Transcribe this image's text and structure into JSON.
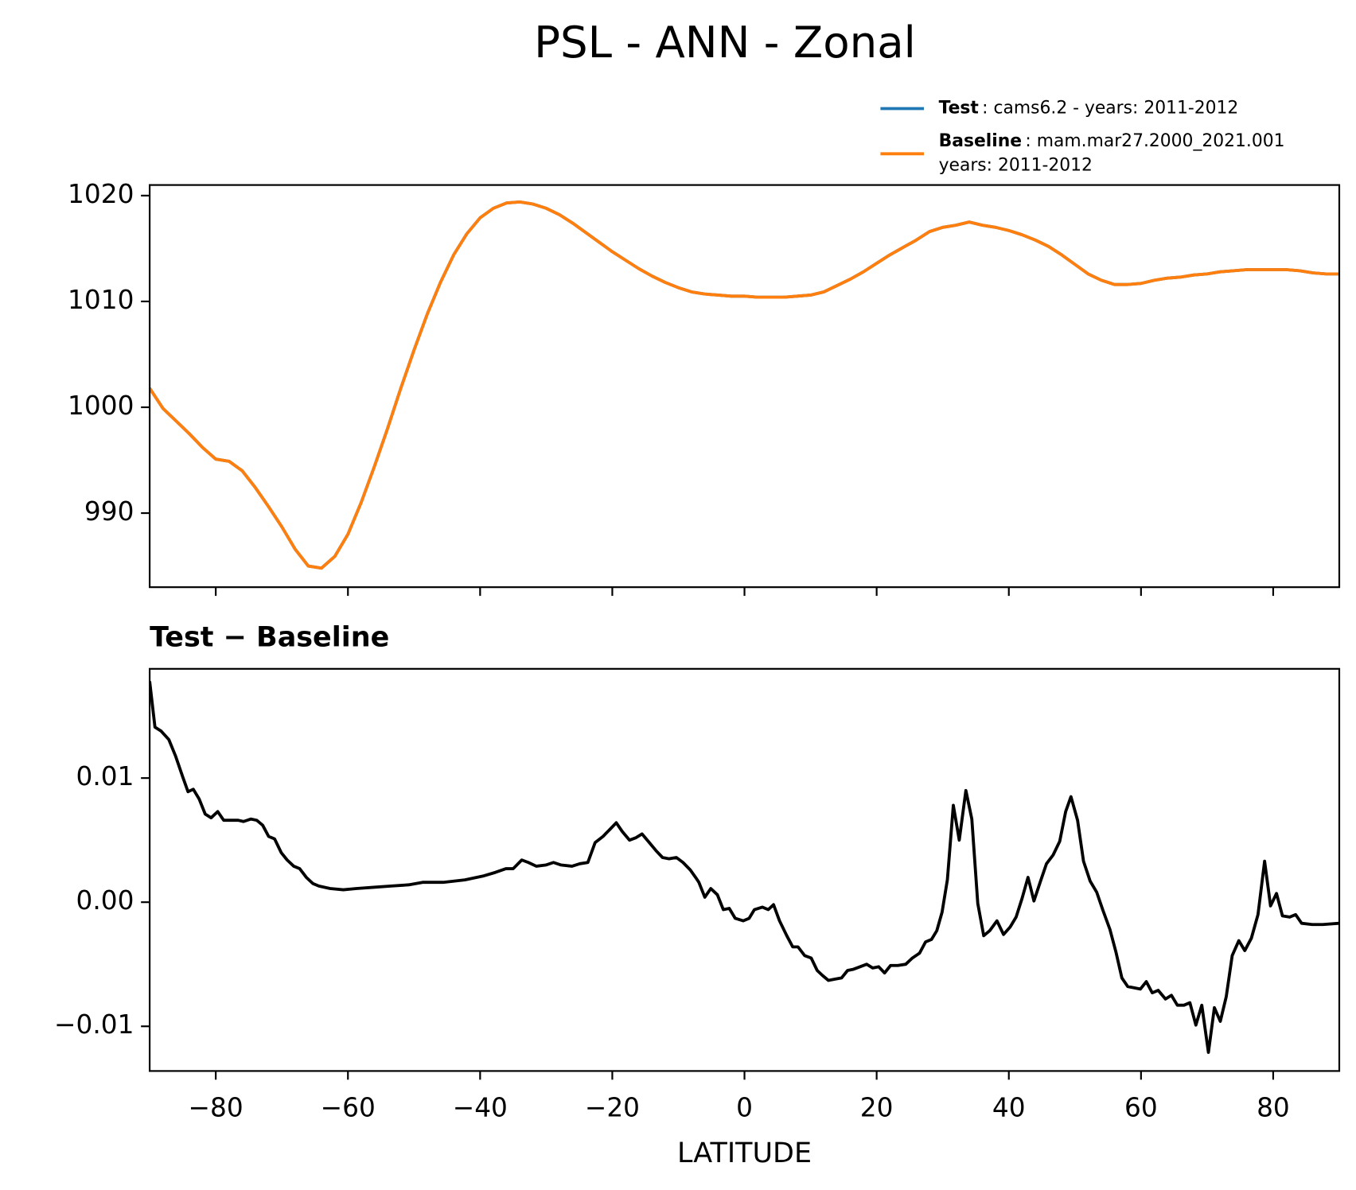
{
  "title": "PSL - ANN - Zonal",
  "chart_data": [
    {
      "type": "line",
      "x": [
        -90,
        -88,
        -86,
        -84,
        -82,
        -80,
        -78,
        -76,
        -74,
        -72,
        -70,
        -68,
        -66,
        -64,
        -62,
        -60,
        -58,
        -56,
        -54,
        -52,
        -50,
        -48,
        -46,
        -44,
        -42,
        -40,
        -38,
        -36,
        -34,
        -32,
        -30,
        -28,
        -26,
        -24,
        -22,
        -20,
        -18,
        -16,
        -14,
        -12,
        -10,
        -8,
        -6,
        -4,
        -2,
        0,
        2,
        4,
        6,
        8,
        10,
        12,
        14,
        16,
        18,
        20,
        22,
        24,
        26,
        28,
        30,
        32,
        34,
        36,
        38,
        40,
        42,
        44,
        46,
        48,
        50,
        52,
        54,
        56,
        58,
        60,
        62,
        64,
        66,
        68,
        70,
        72,
        74,
        76,
        78,
        80,
        82,
        84,
        86,
        88,
        90
      ],
      "series": [
        {
          "name": "Test",
          "detail": [
            ": cams6.2 - years: 2011-2012"
          ],
          "color": "#1f77b4",
          "values": [
            1001.8,
            999.9,
            998.7,
            997.5,
            996.2,
            995.1,
            994.9,
            994.0,
            992.4,
            990.6,
            988.7,
            986.6,
            985.0,
            984.8,
            985.9,
            988.0,
            991.0,
            994.4,
            998.0,
            1001.8,
            1005.4,
            1008.8,
            1011.8,
            1014.4,
            1016.4,
            1017.9,
            1018.8,
            1019.3,
            1019.4,
            1019.2,
            1018.8,
            1018.2,
            1017.4,
            1016.5,
            1015.6,
            1014.7,
            1013.9,
            1013.1,
            1012.4,
            1011.8,
            1011.3,
            1010.9,
            1010.7,
            1010.6,
            1010.5,
            1010.5,
            1010.4,
            1010.4,
            1010.4,
            1010.5,
            1010.6,
            1010.9,
            1011.5,
            1012.1,
            1012.8,
            1013.6,
            1014.4,
            1015.1,
            1015.8,
            1016.6,
            1017.0,
            1017.2,
            1017.5,
            1017.2,
            1017.0,
            1016.7,
            1016.3,
            1015.8,
            1015.2,
            1014.4,
            1013.5,
            1012.6,
            1012.0,
            1011.6,
            1011.6,
            1011.7,
            1012.0,
            1012.2,
            1012.3,
            1012.5,
            1012.6,
            1012.8,
            1012.9,
            1013.0,
            1013.0,
            1013.0,
            1013.0,
            1012.9,
            1012.7,
            1012.6,
            1012.6
          ]
        },
        {
          "name": "Baseline",
          "detail": [
            ": mam.mar27.2000_2021.001",
            "years: 2011-2012"
          ],
          "color": "#ff7f0e",
          "values": [
            1001.8,
            999.9,
            998.7,
            997.5,
            996.2,
            995.1,
            994.9,
            994.0,
            992.4,
            990.6,
            988.7,
            986.6,
            985.0,
            984.8,
            985.9,
            988.0,
            991.0,
            994.4,
            998.0,
            1001.8,
            1005.4,
            1008.8,
            1011.8,
            1014.4,
            1016.4,
            1017.9,
            1018.8,
            1019.3,
            1019.4,
            1019.2,
            1018.8,
            1018.2,
            1017.4,
            1016.5,
            1015.6,
            1014.7,
            1013.9,
            1013.1,
            1012.4,
            1011.8,
            1011.3,
            1010.9,
            1010.7,
            1010.6,
            1010.5,
            1010.5,
            1010.4,
            1010.4,
            1010.4,
            1010.5,
            1010.6,
            1010.9,
            1011.5,
            1012.1,
            1012.8,
            1013.6,
            1014.4,
            1015.1,
            1015.8,
            1016.6,
            1017.0,
            1017.2,
            1017.5,
            1017.2,
            1017.0,
            1016.7,
            1016.3,
            1015.8,
            1015.2,
            1014.4,
            1013.5,
            1012.6,
            1012.0,
            1011.6,
            1011.6,
            1011.7,
            1012.0,
            1012.2,
            1012.3,
            1012.5,
            1012.6,
            1012.8,
            1012.9,
            1013.0,
            1013.0,
            1013.0,
            1013.0,
            1012.9,
            1012.7,
            1012.6,
            1012.6
          ]
        }
      ],
      "xlim": [
        -90,
        90
      ],
      "xticks": [
        -80,
        -60,
        -40,
        -20,
        0,
        20,
        40,
        60,
        80
      ],
      "xtick_labels": false,
      "ylim": [
        983.0,
        1021.0
      ],
      "yticks": [
        990,
        1000,
        1010,
        1020
      ],
      "grid": false
    },
    {
      "type": "line",
      "title": "Test − Baseline",
      "xlabel": "LATITUDE",
      "color": "#000000",
      "x": [
        -90,
        -89.2,
        -88.3,
        -87.1,
        -86.1,
        -85.0,
        -84.2,
        -83.4,
        -82.5,
        -81.6,
        -80.7,
        -79.7,
        -78.8,
        -77.6,
        -76.6,
        -75.8,
        -74.7,
        -73.8,
        -72.9,
        -72.0,
        -71.1,
        -70.1,
        -69.2,
        -68.2,
        -67.3,
        -66.3,
        -65.3,
        -64.4,
        -62.7,
        -60.7,
        -58.7,
        -56.1,
        -53.5,
        -50.8,
        -48.7,
        -45.6,
        -42.3,
        -39.6,
        -37.7,
        -36.1,
        -35.0,
        -33.7,
        -32.7,
        -31.5,
        -30.0,
        -28.9,
        -27.8,
        -26.1,
        -24.9,
        -23.7,
        -22.6,
        -21.4,
        -20.3,
        -19.4,
        -18.5,
        -17.4,
        -16.4,
        -15.5,
        -14.4,
        -13.3,
        -12.4,
        -11.4,
        -10.3,
        -9.3,
        -8.2,
        -7.4,
        -6.9,
        -6.0,
        -5.1,
        -4.1,
        -3.2,
        -2.3,
        -1.4,
        -0.2,
        0.7,
        1.5,
        2.7,
        3.6,
        4.4,
        5.3,
        6.4,
        7.3,
        8.1,
        9.1,
        10.1,
        11.0,
        11.8,
        12.7,
        13.7,
        14.7,
        15.6,
        16.5,
        17.5,
        18.5,
        19.4,
        20.3,
        21.2,
        22.1,
        23.2,
        24.4,
        25.4,
        26.5,
        27.4,
        28.3,
        29.1,
        29.9,
        30.7,
        31.6,
        32.5,
        33.5,
        34.4,
        35.3,
        36.2,
        37.1,
        38.2,
        39.2,
        40.2,
        41.1,
        42.0,
        42.9,
        43.8,
        44.8,
        45.7,
        46.7,
        47.7,
        48.6,
        49.4,
        50.4,
        51.3,
        52.3,
        53.3,
        54.2,
        55.3,
        56.2,
        57.1,
        58.0,
        59.0,
        59.9,
        60.8,
        61.7,
        62.6,
        63.7,
        64.6,
        65.5,
        66.5,
        67.4,
        68.3,
        69.2,
        70.2,
        71.1,
        72.0,
        72.9,
        73.8,
        74.8,
        75.7,
        76.7,
        77.7,
        78.7,
        79.6,
        80.5,
        81.4,
        82.5,
        83.4,
        84.3,
        85.9,
        87.5,
        90.0
      ],
      "values": [
        0.0178,
        0.0141,
        0.0138,
        0.0131,
        0.0118,
        0.0101,
        0.0089,
        0.0091,
        0.0083,
        0.0071,
        0.0068,
        0.0073,
        0.0066,
        0.0066,
        0.0066,
        0.0065,
        0.0067,
        0.0066,
        0.0062,
        0.0053,
        0.0051,
        0.004,
        0.0034,
        0.0029,
        0.0027,
        0.002,
        0.0015,
        0.0013,
        0.0011,
        0.001,
        0.0011,
        0.0012,
        0.0013,
        0.0014,
        0.0016,
        0.0016,
        0.0018,
        0.0021,
        0.0024,
        0.0027,
        0.0027,
        0.0034,
        0.0032,
        0.0029,
        0.003,
        0.0032,
        0.003,
        0.0029,
        0.0031,
        0.0032,
        0.0048,
        0.0053,
        0.0059,
        0.0064,
        0.0057,
        0.005,
        0.0052,
        0.0055,
        0.0048,
        0.0041,
        0.0036,
        0.0035,
        0.0036,
        0.0032,
        0.0026,
        0.002,
        0.0016,
        0.0004,
        0.0011,
        0.0006,
        -0.0006,
        -0.0005,
        -0.0013,
        -0.0015,
        -0.0013,
        -0.0006,
        -0.0004,
        -0.0006,
        -0.0002,
        -0.0015,
        -0.0027,
        -0.0036,
        -0.0036,
        -0.0043,
        -0.0045,
        -0.0055,
        -0.0059,
        -0.0063,
        -0.0062,
        -0.0061,
        -0.0055,
        -0.0054,
        -0.0052,
        -0.005,
        -0.0053,
        -0.0052,
        -0.0057,
        -0.0051,
        -0.0051,
        -0.005,
        -0.0045,
        -0.0041,
        -0.0032,
        -0.003,
        -0.0023,
        -0.0008,
        0.0018,
        0.0078,
        0.005,
        0.009,
        0.0067,
        -0.0001,
        -0.0027,
        -0.0023,
        -0.0015,
        -0.0026,
        -0.002,
        -0.0012,
        0.0003,
        0.002,
        0.0001,
        0.0017,
        0.0031,
        0.0038,
        0.0049,
        0.0073,
        0.0085,
        0.0066,
        0.0033,
        0.0017,
        0.0008,
        -0.0006,
        -0.0022,
        -0.004,
        -0.0061,
        -0.0068,
        -0.0069,
        -0.007,
        -0.0064,
        -0.0073,
        -0.0071,
        -0.0078,
        -0.0075,
        -0.0083,
        -0.0083,
        -0.0081,
        -0.0099,
        -0.0083,
        -0.0121,
        -0.0085,
        -0.0096,
        -0.0076,
        -0.0043,
        -0.0031,
        -0.0039,
        -0.0029,
        -0.001,
        0.0033,
        -0.0003,
        0.0007,
        -0.0011,
        -0.0012,
        -0.001,
        -0.0017,
        -0.0018,
        -0.0018,
        -0.0017
      ],
      "xlim": [
        -90,
        90
      ],
      "xticks": [
        {
          "value": -80,
          "label": "−80"
        },
        {
          "value": -60,
          "label": "−60"
        },
        {
          "value": -40,
          "label": "−40"
        },
        {
          "value": -20,
          "label": "−20"
        },
        0,
        20,
        40,
        60,
        80
      ],
      "ylim": [
        -0.0136,
        0.0188
      ],
      "yticks": [
        {
          "value": -0.01,
          "label": "−0.01"
        },
        {
          "value": 0,
          "label": "0.00"
        },
        {
          "value": 0.01,
          "label": "0.01"
        }
      ],
      "grid": false
    }
  ]
}
